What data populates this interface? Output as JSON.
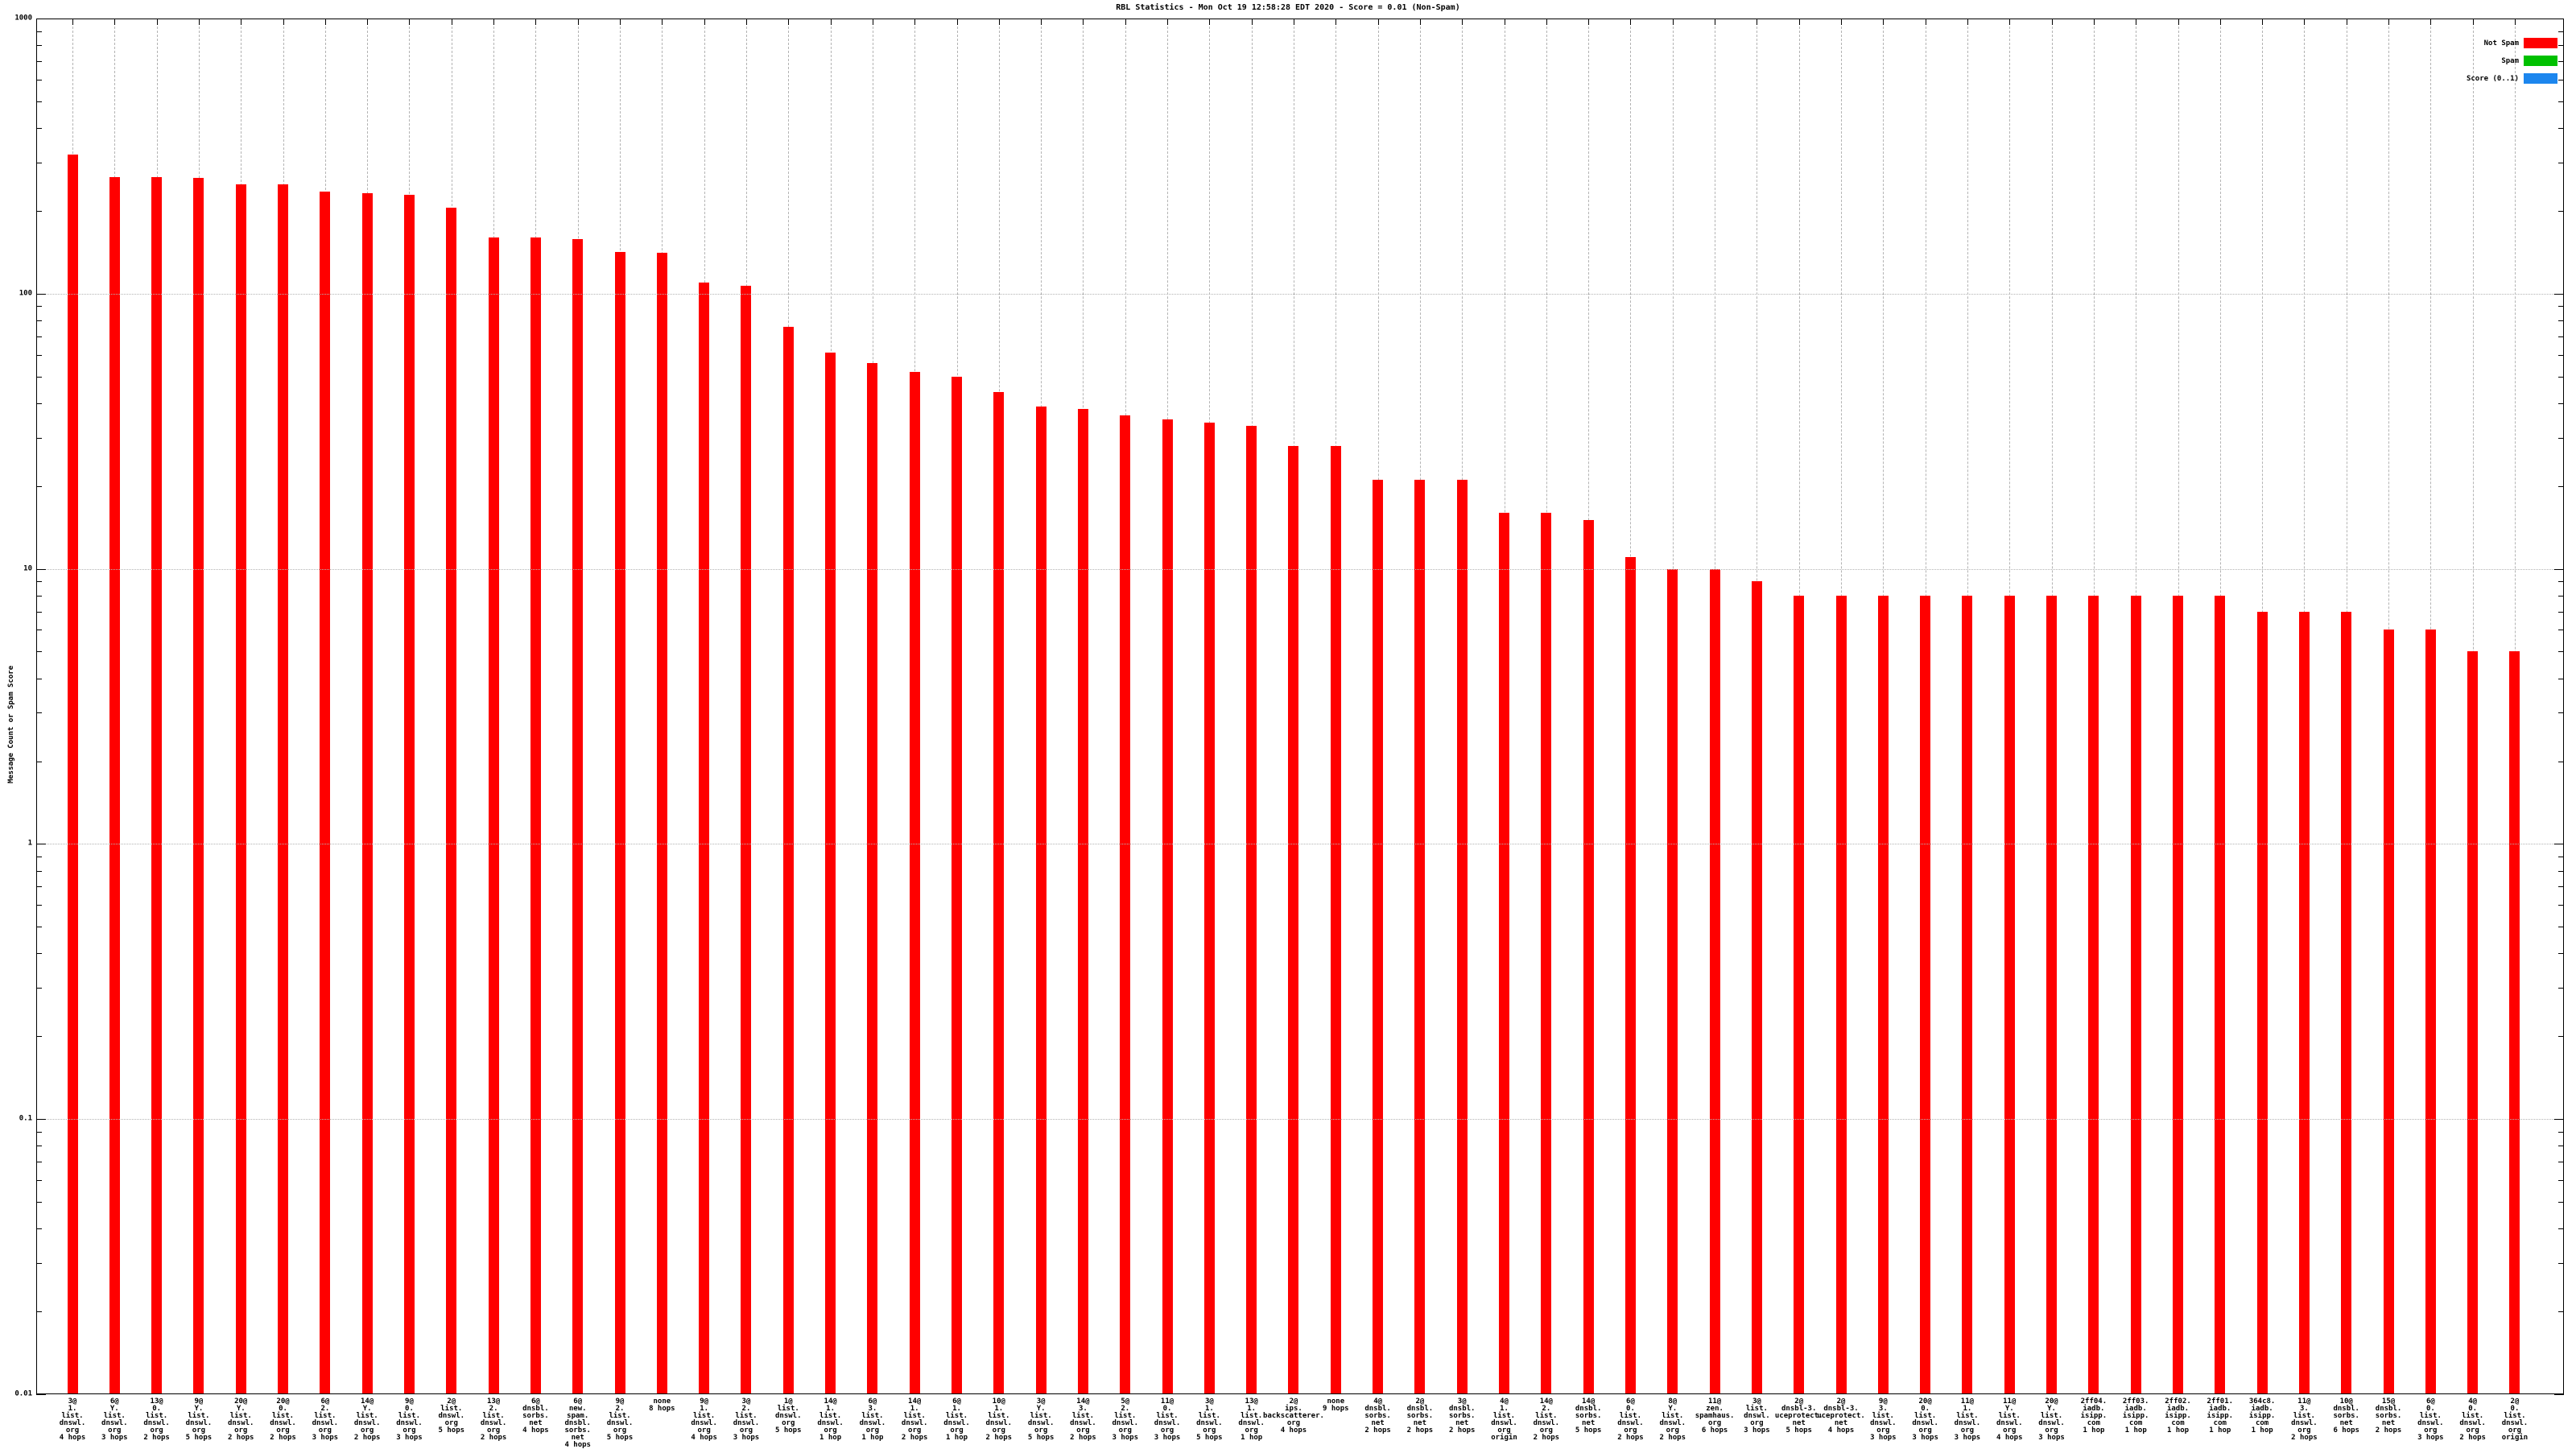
{
  "title": "RBL Statistics - Mon Oct 19 12:58:28 EDT 2020 - Score = 0.01 (Non-Spam)",
  "ylabel": "Message Count or Spam Score",
  "legend": [
    {
      "label": "Not Spam",
      "color": "#ff0000"
    },
    {
      "label": "Spam",
      "color": "#00c000"
    },
    {
      "label": "Score (0..1)",
      "color": "#1c86ee"
    }
  ],
  "y_axis": {
    "scale": "log",
    "ticks": [
      {
        "value": 1000,
        "label": "1000"
      },
      {
        "value": 100,
        "label": "100"
      },
      {
        "value": 10,
        "label": "10"
      },
      {
        "value": 1,
        "label": "1"
      },
      {
        "value": 0.1,
        "label": "0.1"
      },
      {
        "value": 0.01,
        "label": "0.01"
      }
    ]
  },
  "chart_data": {
    "type": "bar",
    "title": "RBL Statistics - Mon Oct 19 12:58:28 EDT 2020 - Score = 0.01 (Non-Spam)",
    "xlabel": "",
    "ylabel": "Message Count or Spam Score",
    "yscale": "log",
    "ylim": [
      0.01,
      1000
    ],
    "grid": true,
    "legend_position": "top-right",
    "bar_color": "#ff0000",
    "series_name": "Not Spam",
    "bars": [
      {
        "label_lines": [
          "3@",
          "1.",
          "list.",
          "dnswl.",
          "org",
          "4 hops"
        ],
        "value": 320
      },
      {
        "label_lines": [
          "6@",
          "Y.",
          "list.",
          "dnswl.",
          "org",
          "3 hops"
        ],
        "value": 265
      },
      {
        "label_lines": [
          "13@",
          "0.",
          "list.",
          "dnswl.",
          "org",
          "2 hops"
        ],
        "value": 265
      },
      {
        "label_lines": [
          "9@",
          "Y.",
          "list.",
          "dnswl.",
          "org",
          "5 hops"
        ],
        "value": 263
      },
      {
        "label_lines": [
          "20@",
          "Y.",
          "list.",
          "dnswl.",
          "org",
          "2 hops"
        ],
        "value": 250
      },
      {
        "label_lines": [
          "20@",
          "0.",
          "list.",
          "dnswl.",
          "org",
          "2 hops"
        ],
        "value": 250
      },
      {
        "label_lines": [
          "6@",
          "2.",
          "list.",
          "dnswl.",
          "org",
          "3 hops"
        ],
        "value": 235
      },
      {
        "label_lines": [
          "14@",
          "Y.",
          "list.",
          "dnswl.",
          "org",
          "2 hops"
        ],
        "value": 232
      },
      {
        "label_lines": [
          "9@",
          "0.",
          "list.",
          "dnswl.",
          "org",
          "3 hops"
        ],
        "value": 228
      },
      {
        "label_lines": [
          "2@",
          "list.",
          "dnswl.",
          "org",
          "5 hops"
        ],
        "value": 205
      },
      {
        "label_lines": [
          "13@",
          "2.",
          "list.",
          "dnswl.",
          "org",
          "2 hops"
        ],
        "value": 160
      },
      {
        "label_lines": [
          "6@",
          "dnsbl.",
          "sorbs.",
          "net",
          "4 hops"
        ],
        "value": 160
      },
      {
        "label_lines": [
          "6@",
          "new.",
          "spam.",
          "dnsbl.",
          "sorbs.",
          "net",
          "4 hops"
        ],
        "value": 158
      },
      {
        "label_lines": [
          "9@",
          "2.",
          "list.",
          "dnswl.",
          "org",
          "5 hops"
        ],
        "value": 142
      },
      {
        "label_lines": [
          "none",
          "8 hops"
        ],
        "value": 141
      },
      {
        "label_lines": [
          "9@",
          "1.",
          "list.",
          "dnswl.",
          "org",
          "4 hops"
        ],
        "value": 110
      },
      {
        "label_lines": [
          "3@",
          "2.",
          "list.",
          "dnswl.",
          "org",
          "3 hops"
        ],
        "value": 107
      },
      {
        "label_lines": [
          "1@",
          "list.",
          "dnswl.",
          "org",
          "5 hops"
        ],
        "value": 76
      },
      {
        "label_lines": [
          "14@",
          "1.",
          "list.",
          "dnswl.",
          "org",
          "1 hop"
        ],
        "value": 61
      },
      {
        "label_lines": [
          "6@",
          "3.",
          "list.",
          "dnswl.",
          "org",
          "1 hop"
        ],
        "value": 56
      },
      {
        "label_lines": [
          "14@",
          "1.",
          "list.",
          "dnswl.",
          "org",
          "2 hops"
        ],
        "value": 52
      },
      {
        "label_lines": [
          "6@",
          "1.",
          "list.",
          "dnswl.",
          "org",
          "1 hop"
        ],
        "value": 50
      },
      {
        "label_lines": [
          "10@",
          "1.",
          "list.",
          "dnswl.",
          "org",
          "2 hops"
        ],
        "value": 44
      },
      {
        "label_lines": [
          "3@",
          "Y.",
          "list.",
          "dnswl.",
          "org",
          "5 hops"
        ],
        "value": 39
      },
      {
        "label_lines": [
          "14@",
          "3.",
          "list.",
          "dnswl.",
          "org",
          "2 hops"
        ],
        "value": 38
      },
      {
        "label_lines": [
          "5@",
          "2.",
          "list.",
          "dnswl.",
          "org",
          "3 hops"
        ],
        "value": 36
      },
      {
        "label_lines": [
          "11@",
          "0.",
          "list.",
          "dnswl.",
          "org",
          "3 hops"
        ],
        "value": 35
      },
      {
        "label_lines": [
          "3@",
          "1.",
          "list.",
          "dnswl.",
          "org",
          "5 hops"
        ],
        "value": 34
      },
      {
        "label_lines": [
          "13@",
          "1.",
          "list.",
          "dnswl.",
          "org",
          "1 hop"
        ],
        "value": 33
      },
      {
        "label_lines": [
          "2@",
          "ips.",
          "backscatterer.",
          "org",
          "4 hops"
        ],
        "value": 28
      },
      {
        "label_lines": [
          "none",
          "9 hops"
        ],
        "value": 28
      },
      {
        "label_lines": [
          "4@",
          "dnsbl.",
          "sorbs.",
          "net",
          "2 hops"
        ],
        "value": 21
      },
      {
        "label_lines": [
          "2@",
          "dnsbl.",
          "sorbs.",
          "net",
          "2 hops"
        ],
        "value": 21
      },
      {
        "label_lines": [
          "3@",
          "dnsbl.",
          "sorbs.",
          "net",
          "2 hops"
        ],
        "value": 21
      },
      {
        "label_lines": [
          "4@",
          "1.",
          "list.",
          "dnswl.",
          "org",
          "origin"
        ],
        "value": 16
      },
      {
        "label_lines": [
          "14@",
          "2.",
          "list.",
          "dnswl.",
          "org",
          "2 hops"
        ],
        "value": 16
      },
      {
        "label_lines": [
          "14@",
          "dnsbl.",
          "sorbs.",
          "net",
          "5 hops"
        ],
        "value": 15
      },
      {
        "label_lines": [
          "6@",
          "0.",
          "list.",
          "dnswl.",
          "org",
          "2 hops"
        ],
        "value": 11
      },
      {
        "label_lines": [
          "8@",
          "Y.",
          "list.",
          "dnswl.",
          "org",
          "2 hops"
        ],
        "value": 10
      },
      {
        "label_lines": [
          "11@",
          "zen.",
          "spamhaus.",
          "org",
          "6 hops"
        ],
        "value": 10
      },
      {
        "label_lines": [
          "3@",
          "list.",
          "dnswl.",
          "org",
          "3 hops"
        ],
        "value": 9
      },
      {
        "label_lines": [
          "2@",
          "dnsbl-3.",
          "uceprotect.",
          "net",
          "5 hops"
        ],
        "value": 8
      },
      {
        "label_lines": [
          "2@",
          "dnsbl-3.",
          "uceprotect.",
          "net",
          "4 hops"
        ],
        "value": 8
      },
      {
        "label_lines": [
          "9@",
          "3.",
          "list.",
          "dnswl.",
          "org",
          "3 hops"
        ],
        "value": 8
      },
      {
        "label_lines": [
          "20@",
          "0.",
          "list.",
          "dnswl.",
          "org",
          "3 hops"
        ],
        "value": 8
      },
      {
        "label_lines": [
          "11@",
          "1.",
          "list.",
          "dnswl.",
          "org",
          "3 hops"
        ],
        "value": 8
      },
      {
        "label_lines": [
          "11@",
          "Y.",
          "list.",
          "dnswl.",
          "org",
          "4 hops"
        ],
        "value": 8
      },
      {
        "label_lines": [
          "20@",
          "Y.",
          "list.",
          "dnswl.",
          "org",
          "3 hops"
        ],
        "value": 8
      },
      {
        "label_lines": [
          "2ff04.",
          "iadb.",
          "isipp.",
          "com",
          "1 hop"
        ],
        "value": 8
      },
      {
        "label_lines": [
          "2ff03.",
          "iadb.",
          "isipp.",
          "com",
          "1 hop"
        ],
        "value": 8
      },
      {
        "label_lines": [
          "2ff02.",
          "iadb.",
          "isipp.",
          "com",
          "1 hop"
        ],
        "value": 8
      },
      {
        "label_lines": [
          "2ff01.",
          "iadb.",
          "isipp.",
          "com",
          "1 hop"
        ],
        "value": 8
      },
      {
        "label_lines": [
          "364c8.",
          "iadb.",
          "isipp.",
          "com",
          "1 hop"
        ],
        "value": 7
      },
      {
        "label_lines": [
          "11@",
          "3.",
          "list.",
          "dnswl.",
          "org",
          "2 hops"
        ],
        "value": 7
      },
      {
        "label_lines": [
          "10@",
          "dnsbl.",
          "sorbs.",
          "net",
          "6 hops"
        ],
        "value": 7
      },
      {
        "label_lines": [
          "15@",
          "dnsbl.",
          "sorbs.",
          "net",
          "2 hops"
        ],
        "value": 6
      },
      {
        "label_lines": [
          "6@",
          "0.",
          "list.",
          "dnswl.",
          "org",
          "3 hops"
        ],
        "value": 6
      },
      {
        "label_lines": [
          "4@",
          "0.",
          "list.",
          "dnswl.",
          "org",
          "2 hops"
        ],
        "value": 5
      },
      {
        "label_lines": [
          "2@",
          "0.",
          "list.",
          "dnswl.",
          "org",
          "origin"
        ],
        "value": 5
      }
    ]
  }
}
